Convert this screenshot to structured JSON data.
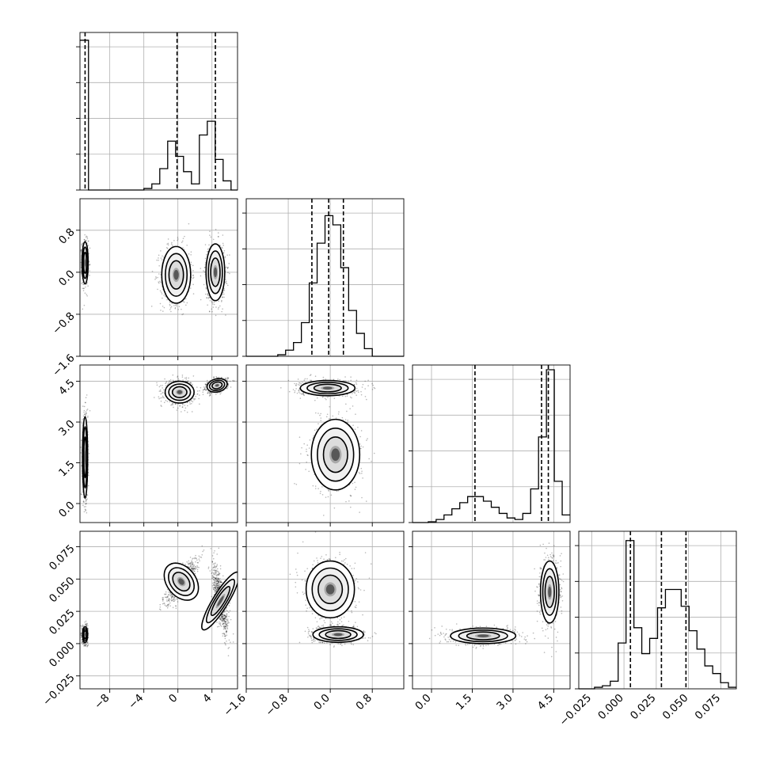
{
  "chart_data": {
    "type": "corner",
    "n_params": 4,
    "grid": true,
    "columns": [
      {
        "range": [
          -11.5,
          7
        ],
        "ticks": [
          -8,
          -4,
          0,
          4
        ],
        "tick_labels": [
          "−8",
          "−4",
          "0",
          "4"
        ]
      },
      {
        "range": [
          -1.6,
          1.4
        ],
        "ticks": [
          -1.6,
          -0.8,
          0.0,
          0.8
        ],
        "tick_labels": [
          "−1.6",
          "−0.8",
          "0.0",
          "0.8"
        ]
      },
      {
        "range": [
          -0.7,
          5.1
        ],
        "ticks": [
          0.0,
          1.5,
          3.0,
          4.5
        ],
        "tick_labels": [
          "0.0",
          "1.5",
          "3.0",
          "4.5"
        ]
      },
      {
        "range": [
          -0.035,
          0.087
        ],
        "ticks": [
          -0.025,
          0.0,
          0.025,
          0.05,
          0.075
        ],
        "tick_labels": [
          "−0.025",
          "0.000",
          "0.025",
          "0.050",
          "0.075"
        ]
      }
    ],
    "rows": [
      {
        "param": 1,
        "range": [
          -1.6,
          1.4
        ],
        "ticks": [
          -1.6,
          -0.8,
          0.0,
          0.8
        ],
        "tick_labels": [
          "−1.6",
          "−0.8",
          "0.0",
          "0.8"
        ]
      },
      {
        "param": 2,
        "range": [
          -0.7,
          5.1
        ],
        "ticks": [
          0.0,
          1.5,
          3.0,
          4.5
        ],
        "tick_labels": [
          "0.0",
          "1.5",
          "3.0",
          "4.5"
        ]
      },
      {
        "param": 3,
        "range": [
          -0.035,
          0.087
        ],
        "ticks": [
          -0.025,
          0.0,
          0.025,
          0.05,
          0.075
        ],
        "tick_labels": [
          "−0.025",
          "0.000",
          "0.025",
          "0.050",
          "0.075"
        ]
      }
    ],
    "histograms": [
      {
        "param": 0,
        "ymax": 1.0,
        "bins": [
          -11.5,
          -10.5,
          -9.57,
          -8.64,
          -7.71,
          -6.78,
          -5.85,
          -4.92,
          -3.99,
          -3.06,
          -2.13,
          -1.2,
          -0.27,
          0.66,
          1.59,
          2.52,
          3.45,
          4.38,
          5.31,
          6.24,
          7.0
        ],
        "counts": [
          0.98,
          0,
          0,
          0,
          0,
          0,
          0,
          0,
          0.01,
          0.04,
          0.14,
          0.32,
          0.22,
          0.12,
          0.04,
          0.36,
          0.45,
          0.2,
          0.06,
          0.0
        ],
        "quantiles": [
          -10.9,
          -0.1,
          4.4
        ]
      },
      {
        "param": 1,
        "ymax": 1.0,
        "bins": [
          -1.6,
          -1.45,
          -1.3,
          -1.15,
          -1.0,
          -0.85,
          -0.7,
          -0.55,
          -0.4,
          -0.25,
          -0.1,
          0.05,
          0.2,
          0.35,
          0.5,
          0.65,
          0.8,
          0.95,
          1.1,
          1.25,
          1.4
        ],
        "counts": [
          0,
          0,
          0,
          0,
          0.01,
          0.04,
          0.09,
          0.22,
          0.48,
          0.74,
          0.92,
          0.86,
          0.58,
          0.3,
          0.15,
          0.05,
          0.0,
          0,
          0,
          0
        ],
        "quantiles": [
          -0.35,
          -0.03,
          0.25
        ]
      },
      {
        "param": 2,
        "ymax": 1.0,
        "bins": [
          -0.7,
          -0.41,
          -0.12,
          0.17,
          0.46,
          0.75,
          1.04,
          1.33,
          1.62,
          1.91,
          2.2,
          2.49,
          2.78,
          3.07,
          3.36,
          3.65,
          3.94,
          4.23,
          4.52,
          4.81,
          5.1
        ],
        "counts": [
          0,
          0,
          0.005,
          0.02,
          0.05,
          0.09,
          0.13,
          0.17,
          0.17,
          0.14,
          0.1,
          0.06,
          0.03,
          0.02,
          0.06,
          0.22,
          0.56,
          1.0,
          0.27,
          0.05
        ],
        "quantiles": [
          1.6,
          4.05,
          4.3
        ]
      },
      {
        "param": 3,
        "ymax": 1.0,
        "bins": [
          -0.035,
          -0.0289,
          -0.0228,
          -0.0167,
          -0.0106,
          -0.0045,
          0.0016,
          0.0077,
          0.0138,
          0.0199,
          0.026,
          0.0321,
          0.0382,
          0.0443,
          0.0504,
          0.0565,
          0.0626,
          0.0687,
          0.0748,
          0.0809,
          0.087
        ],
        "counts": [
          0,
          0,
          0.01,
          0.02,
          0.05,
          0.3,
          0.97,
          0.4,
          0.23,
          0.33,
          0.53,
          0.65,
          0.65,
          0.54,
          0.38,
          0.26,
          0.15,
          0.1,
          0.04,
          0.01
        ],
        "quantiles": [
          0.005,
          0.029,
          0.048
        ]
      }
    ],
    "pairs": [
      {
        "col": 0,
        "row": 1,
        "clusters": [
          {
            "center": [
              -10.9,
              0.18
            ],
            "sigma": [
              0.18,
              0.2
            ],
            "rho": 0.0
          },
          {
            "center": [
              -0.2,
              -0.05
            ],
            "sigma": [
              0.85,
              0.27
            ],
            "rho": 0.0
          },
          {
            "center": [
              4.4,
              0.0
            ],
            "sigma": [
              0.55,
              0.27
            ],
            "rho": 0.0
          }
        ]
      },
      {
        "col": 0,
        "row": 2,
        "clusters": [
          {
            "center": [
              -10.9,
              1.7
            ],
            "sigma": [
              0.15,
              0.75
            ],
            "rho": 0.0
          },
          {
            "center": [
              0.2,
              4.1
            ],
            "sigma": [
              0.85,
              0.2
            ],
            "rho": 0.0
          },
          {
            "center": [
              4.6,
              4.35
            ],
            "sigma": [
              0.6,
              0.12
            ],
            "rho": 0.3
          }
        ]
      },
      {
        "col": 0,
        "row": 3,
        "clusters": [
          {
            "center": [
              -10.9,
              0.007
            ],
            "sigma": [
              0.15,
              0.003
            ],
            "rho": 0.0
          },
          {
            "center": [
              0.4,
              0.048
            ],
            "sigma": [
              0.85,
              0.008
            ],
            "rho": 0.85
          },
          {
            "center": [
              5.0,
              0.033
            ],
            "sigma": [
              0.45,
              0.013
            ],
            "rho": -0.7
          }
        ]
      },
      {
        "col": 1,
        "row": 2,
        "clusters": [
          {
            "center": [
              -0.05,
              4.25
            ],
            "sigma": [
              0.26,
              0.14
            ],
            "rho": 0.0
          },
          {
            "center": [
              0.1,
              1.8
            ],
            "sigma": [
              0.23,
              0.65
            ],
            "rho": 0.0
          }
        ]
      },
      {
        "col": 1,
        "row": 3,
        "clusters": [
          {
            "center": [
              0.0,
              0.042
            ],
            "sigma": [
              0.23,
              0.011
            ],
            "rho": 0.0
          },
          {
            "center": [
              0.15,
              0.007
            ],
            "sigma": [
              0.24,
              0.003
            ],
            "rho": 0.0
          }
        ]
      },
      {
        "col": 2,
        "row": 3,
        "clusters": [
          {
            "center": [
              1.9,
              0.006
            ],
            "sigma": [
              0.6,
              0.003
            ],
            "rho": 0.0
          },
          {
            "center": [
              4.35,
              0.04
            ],
            "sigma": [
              0.17,
              0.012
            ],
            "rho": 0.0
          }
        ]
      }
    ]
  }
}
